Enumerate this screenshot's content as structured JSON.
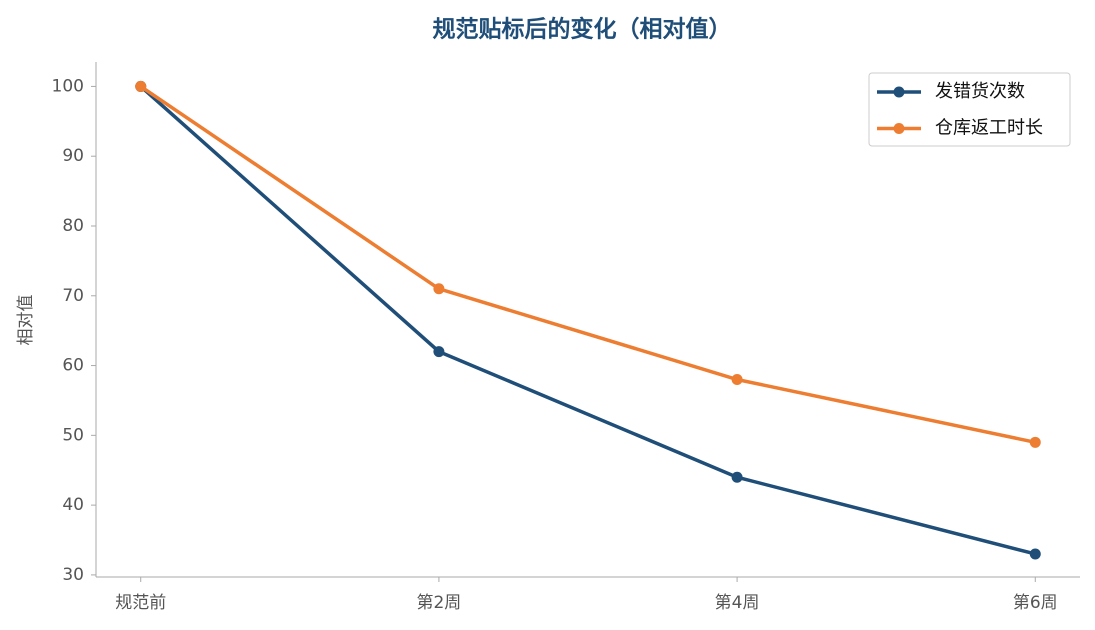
{
  "chart_data": {
    "type": "line",
    "title": "规范贴标后的变化（相对值）",
    "y_label": "相对值",
    "categories": [
      "规范前",
      "第2周",
      "第4周",
      "第6周"
    ],
    "series": [
      {
        "name": "发错货次数",
        "color": "#1f4e79",
        "values": [
          100,
          62,
          44,
          33
        ]
      },
      {
        "name": "仓库返工时长",
        "color": "#ed7d31",
        "values": [
          100,
          71,
          58,
          49
        ]
      }
    ],
    "ylim": [
      29.7,
      103.5
    ],
    "yticks": [
      30,
      40,
      50,
      60,
      70,
      80,
      90,
      100
    ],
    "grid": false,
    "legend": "upper right"
  }
}
